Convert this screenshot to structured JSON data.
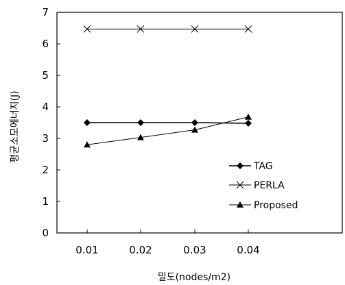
{
  "chart_data": {
    "type": "line",
    "title": "",
    "xlabel": "밀도(nodes/m2)",
    "ylabel": "평균소모에너지(J)",
    "x": [
      0.01,
      0.02,
      0.03,
      0.04
    ],
    "x_tick_labels": [
      "0.01",
      "0.02",
      "0.03",
      "0.04"
    ],
    "y_tick_labels": [
      "0",
      "1",
      "2",
      "3",
      "4",
      "5",
      "6",
      "7"
    ],
    "ylim": [
      0,
      7
    ],
    "grid": false,
    "legend_position": "bottom-right",
    "series": [
      {
        "name": "TAG",
        "marker": "diamond",
        "color": "#000000",
        "values": [
          3.5,
          3.5,
          3.5,
          3.48
        ]
      },
      {
        "name": "PERLA",
        "marker": "x",
        "color": "#000000",
        "values": [
          6.47,
          6.47,
          6.47,
          6.47
        ]
      },
      {
        "name": "Proposed",
        "marker": "triangle",
        "color": "#000000",
        "values": [
          2.8,
          3.03,
          3.27,
          3.68
        ]
      }
    ]
  }
}
